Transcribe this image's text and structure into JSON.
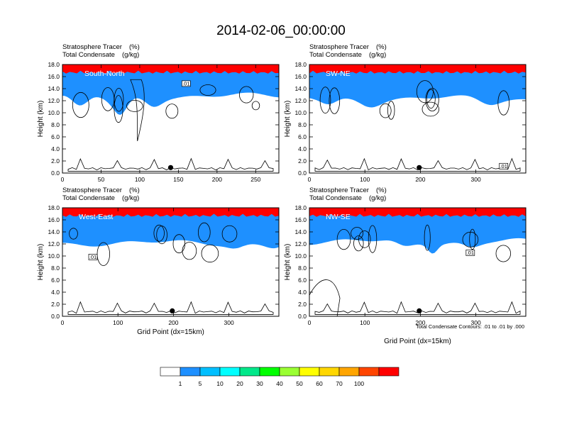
{
  "chart_data": {
    "type": "heatmap",
    "title": "2014-02-06_00:00:00",
    "colorbar": {
      "levels": [
        1,
        5,
        10,
        20,
        30,
        40,
        50,
        60,
        70,
        100
      ],
      "colors": [
        "#ffffff",
        "#1e90ff",
        "#00bfff",
        "#00ffff",
        "#00e88a",
        "#00ff00",
        "#9aff32",
        "#ffff00",
        "#ffd700",
        "#ffa500",
        "#ff4500",
        "#ff0000"
      ]
    },
    "contour_note": "Total Condensate Contours: .01 to .01 by .000",
    "contour_label": ".01",
    "panels": [
      {
        "label": "South-North",
        "header_left_1": "Stratosphere Tracer",
        "header_unit_1": "(%)",
        "header_left_2": "Total Condensate",
        "header_unit_2": "(g/kg)",
        "ylabel": "Height (km)",
        "xlabel": "",
        "xlim": [
          0,
          280
        ],
        "ylim": [
          0,
          18
        ],
        "xticks": [
          "0",
          "50",
          "100",
          "150",
          "200",
          "250"
        ],
        "xtick_values": [
          0,
          50,
          100,
          150,
          200,
          250
        ],
        "yticks": [
          "0.0",
          "2.0",
          "4.0",
          "6.0",
          "8.0",
          "10.0",
          "12.0",
          "14.0",
          "16.0",
          "18.0"
        ],
        "tropopause_km": 15.6,
        "marker_x": 140
      },
      {
        "label": "SW-NE",
        "header_left_1": "Stratosphere Tracer",
        "header_unit_1": "(%)",
        "header_left_2": "Total Condensate",
        "header_unit_2": "(g/kg)",
        "ylabel": "Height (km)",
        "xlabel": "",
        "xlim": [
          0,
          390
        ],
        "ylim": [
          0,
          18
        ],
        "xticks": [
          "0",
          "100",
          "200",
          "300"
        ],
        "xtick_values": [
          0,
          100,
          200,
          300
        ],
        "yticks": [
          "0.0",
          "2.0",
          "4.0",
          "6.0",
          "8.0",
          "10.0",
          "12.0",
          "14.0",
          "16.0",
          "18.0"
        ],
        "tropopause_km": 15.2,
        "marker_x": 198
      },
      {
        "label": "West-East",
        "header_left_1": "Stratosphere Tracer",
        "header_unit_1": "(%)",
        "header_left_2": "Total Condensate",
        "header_unit_2": "(g/kg)",
        "ylabel": "Height (km)",
        "xlabel": "Grid Point (dx=15km)",
        "xlim": [
          0,
          390
        ],
        "ylim": [
          0,
          18
        ],
        "xticks": [
          "0",
          "100",
          "200",
          "300"
        ],
        "xtick_values": [
          0,
          100,
          200,
          300
        ],
        "yticks": [
          "0.0",
          "2.0",
          "4.0",
          "6.0",
          "8.0",
          "10.0",
          "12.0",
          "14.0",
          "16.0",
          "18.0"
        ],
        "tropopause_km": 15.0,
        "marker_x": 198
      },
      {
        "label": "NW-SE",
        "header_left_1": "Stratosphere Tracer",
        "header_unit_1": "(%)",
        "header_left_2": "Total Condensate",
        "header_unit_2": "(g/kg)",
        "ylabel": "Height (km)",
        "xlabel": "Grid Point (dx=15km)",
        "xlim": [
          0,
          390
        ],
        "ylim": [
          0,
          18
        ],
        "xticks": [
          "0",
          "100",
          "200",
          "300"
        ],
        "xtick_values": [
          0,
          100,
          200,
          300
        ],
        "yticks": [
          "0.0",
          "2.0",
          "4.0",
          "6.0",
          "8.0",
          "10.0",
          "12.0",
          "14.0",
          "16.0",
          "18.0"
        ],
        "tropopause_km": 15.2,
        "marker_x": 198
      }
    ]
  }
}
